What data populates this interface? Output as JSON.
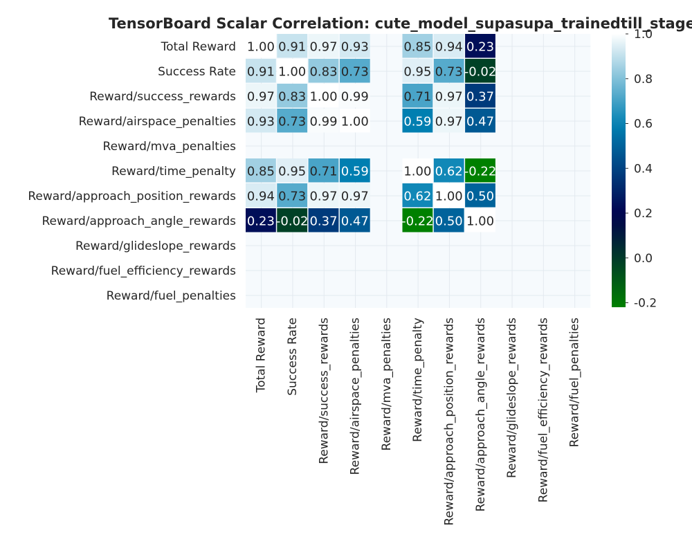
{
  "chart_data": {
    "type": "heatmap",
    "title": "TensorBoard Scalar Correlation: cute_model_supasupa_trainedtill_stage",
    "xlabel": "",
    "ylabel": "",
    "labels": [
      "Total Reward",
      "Success Rate",
      "Reward/success_rewards",
      "Reward/airspace_penalties",
      "Reward/mva_penalties",
      "Reward/time_penalty",
      "Reward/approach_position_rewards",
      "Reward/approach_angle_rewards",
      "Reward/glideslope_rewards",
      "Reward/fuel_efficiency_rewards",
      "Reward/fuel_penalties"
    ],
    "matrix": [
      [
        1.0,
        0.91,
        0.97,
        0.93,
        null,
        0.85,
        0.94,
        0.23,
        null,
        null,
        null
      ],
      [
        0.91,
        1.0,
        0.83,
        0.73,
        null,
        0.95,
        0.73,
        -0.02,
        null,
        null,
        null
      ],
      [
        0.97,
        0.83,
        1.0,
        0.99,
        null,
        0.71,
        0.97,
        0.37,
        null,
        null,
        null
      ],
      [
        0.93,
        0.73,
        0.99,
        1.0,
        null,
        0.59,
        0.97,
        0.47,
        null,
        null,
        null
      ],
      [
        null,
        null,
        null,
        null,
        null,
        null,
        null,
        null,
        null,
        null,
        null
      ],
      [
        0.85,
        0.95,
        0.71,
        0.59,
        null,
        1.0,
        0.62,
        -0.22,
        null,
        null,
        null
      ],
      [
        0.94,
        0.73,
        0.97,
        0.97,
        null,
        0.62,
        1.0,
        0.5,
        null,
        null,
        null
      ],
      [
        0.23,
        -0.02,
        0.37,
        0.47,
        null,
        -0.22,
        0.5,
        1.0,
        null,
        null,
        null
      ],
      [
        null,
        null,
        null,
        null,
        null,
        null,
        null,
        null,
        null,
        null,
        null
      ],
      [
        null,
        null,
        null,
        null,
        null,
        null,
        null,
        null,
        null,
        null,
        null
      ],
      [
        null,
        null,
        null,
        null,
        null,
        null,
        null,
        null,
        null,
        null,
        null
      ]
    ],
    "value_format": "0.00",
    "colormap": "ocean",
    "color_range": [
      -0.22,
      1.0
    ],
    "colorbar_ticks": [
      "-0.2",
      "0.0",
      "0.2",
      "0.4",
      "0.6",
      "0.8",
      "1.0"
    ],
    "colorbar_tick_values": [
      -0.2,
      0.0,
      0.2,
      0.4,
      0.6,
      0.8,
      1.0
    ],
    "grid": true,
    "legend": "right colorbar"
  }
}
